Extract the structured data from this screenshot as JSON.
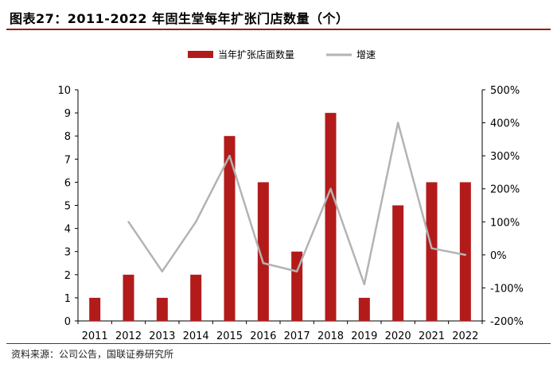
{
  "header": {
    "title": "图表27：2011-2022 年固生堂每年扩张门店数量（个）"
  },
  "footer": {
    "source": "资料来源：公司公告，国联证券研究所"
  },
  "chart_data": {
    "type": "bar",
    "categories": [
      "2011",
      "2012",
      "2013",
      "2014",
      "2015",
      "2016",
      "2017",
      "2018",
      "2019",
      "2020",
      "2021",
      "2022"
    ],
    "series": [
      {
        "name": "当年扩张店面数量",
        "type": "bar",
        "axis": "left",
        "color": "#b31b1b",
        "values": [
          1,
          2,
          1,
          2,
          8,
          6,
          3,
          9,
          1,
          5,
          6,
          6
        ]
      },
      {
        "name": "增速",
        "type": "line",
        "axis": "right",
        "color": "#b3b3b3",
        "values": [
          null,
          100,
          -50,
          100,
          300,
          -25,
          -50,
          200,
          -89,
          400,
          20,
          0
        ]
      }
    ],
    "ylim": [
      0,
      10
    ],
    "yticks": [
      "0",
      "1",
      "2",
      "3",
      "4",
      "5",
      "6",
      "7",
      "8",
      "9",
      "10"
    ],
    "y2lim": [
      -200,
      500
    ],
    "y2ticks": [
      "-200%",
      "-100%",
      "0%",
      "100%",
      "200%",
      "300%",
      "400%",
      "500%"
    ],
    "legend": "top-center",
    "grid": false
  }
}
